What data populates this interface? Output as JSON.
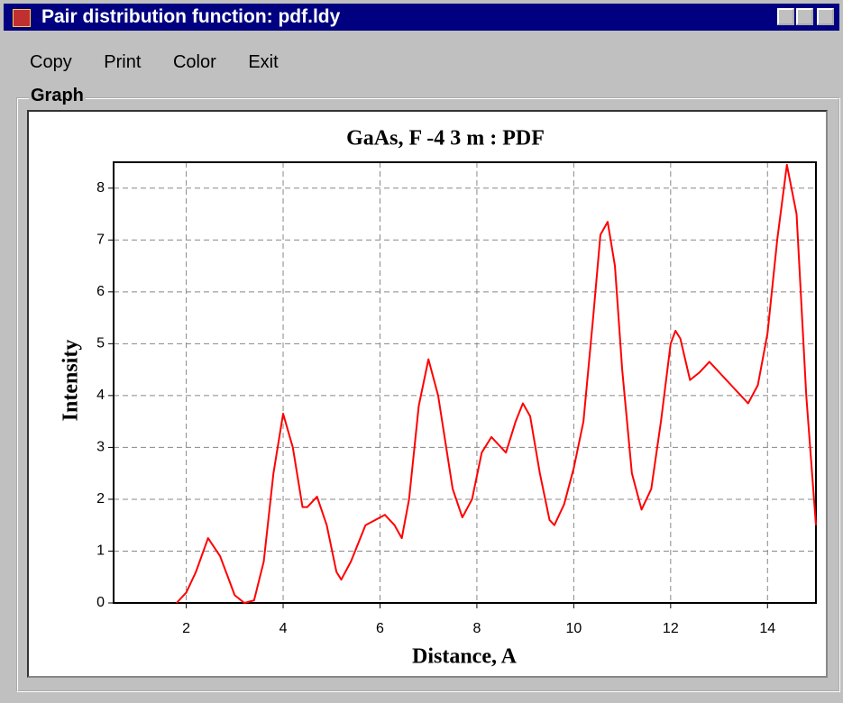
{
  "window": {
    "title": "Pair distribution function: pdf.ldy"
  },
  "menu": [
    "Copy",
    "Print",
    "Color",
    "Exit"
  ],
  "group": {
    "label": "Graph"
  },
  "chart_data": {
    "type": "line",
    "title": "GaAs, F -4 3 m : PDF",
    "xlabel": "Distance, A",
    "ylabel": "Intensity",
    "x": [
      1.8,
      2.0,
      2.2,
      2.45,
      2.7,
      3.0,
      3.2,
      3.4,
      3.6,
      3.8,
      4.0,
      4.2,
      4.4,
      4.5,
      4.7,
      4.9,
      5.1,
      5.2,
      5.4,
      5.7,
      6.0,
      6.1,
      6.3,
      6.45,
      6.6,
      6.8,
      7.0,
      7.2,
      7.5,
      7.7,
      7.9,
      8.1,
      8.3,
      8.5,
      8.6,
      8.8,
      8.95,
      9.1,
      9.3,
      9.5,
      9.6,
      9.8,
      10.0,
      10.2,
      10.4,
      10.55,
      10.7,
      10.85,
      11.0,
      11.2,
      11.4,
      11.6,
      11.8,
      12.0,
      12.1,
      12.2,
      12.4,
      12.6,
      12.8,
      13.0,
      13.3,
      13.6,
      13.8,
      14.0,
      14.2,
      14.4,
      14.6,
      14.8,
      15.0
    ],
    "values": [
      0,
      0.2,
      0.6,
      1.25,
      0.9,
      0.15,
      0,
      0.05,
      0.8,
      2.5,
      3.65,
      3.0,
      1.85,
      1.85,
      2.05,
      1.5,
      0.6,
      0.45,
      0.8,
      1.5,
      1.65,
      1.7,
      1.5,
      1.25,
      2.0,
      3.8,
      4.7,
      4.0,
      2.2,
      1.65,
      2.0,
      2.9,
      3.2,
      3.0,
      2.9,
      3.5,
      3.85,
      3.6,
      2.5,
      1.6,
      1.5,
      1.9,
      2.6,
      3.5,
      5.5,
      7.1,
      7.35,
      6.5,
      4.5,
      2.5,
      1.8,
      2.2,
      3.5,
      5.0,
      5.25,
      5.1,
      4.3,
      4.45,
      4.65,
      4.45,
      4.15,
      3.85,
      4.2,
      5.2,
      7.0,
      8.45,
      7.5,
      4.0,
      1.5
    ],
    "color": "#ff0000",
    "xlim": [
      0.5,
      15
    ],
    "xticks": [
      2,
      4,
      6,
      8,
      10,
      12,
      14
    ],
    "ylim": [
      0,
      8.5
    ],
    "yticks": [
      0,
      1,
      2,
      3,
      4,
      5,
      6,
      7,
      8
    ],
    "grid": true
  }
}
